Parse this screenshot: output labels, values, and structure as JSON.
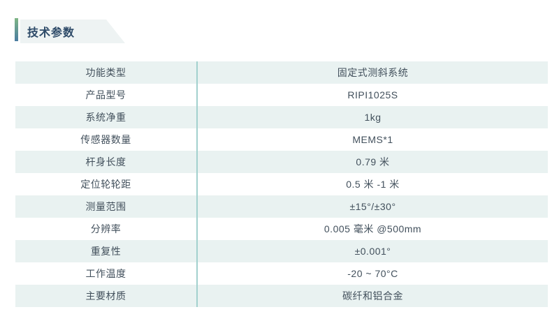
{
  "page": {
    "background": "#ffffff"
  },
  "header": {
    "title": "技术参数",
    "title_color": "#2d4a68",
    "badge_bg": "#eef3f3",
    "accent_bar_top_color": "#7fb685",
    "accent_bar_bottom_color": "#4a7ca1"
  },
  "table": {
    "stripe_bg": "#e9f2f1",
    "divider_color": "#a2d1ce",
    "text_color": "#42505c",
    "rows": [
      {
        "label": "功能类型",
        "value": "固定式测斜系统"
      },
      {
        "label": "产品型号",
        "value": "RIPI1025S"
      },
      {
        "label": "系统净重",
        "value": "1kg"
      },
      {
        "label": "传感器数量",
        "value": "MEMS*1"
      },
      {
        "label": "杆身长度",
        "value": "0.79 米"
      },
      {
        "label": "定位轮轮距",
        "value": "0.5 米 -1 米"
      },
      {
        "label": "测量范围",
        "value": "±15°/±30°"
      },
      {
        "label": "分辨率",
        "value": "0.005 毫米 @500mm"
      },
      {
        "label": "重复性",
        "value": "±0.001°"
      },
      {
        "label": "工作温度",
        "value": "-20 ~ 70°C"
      },
      {
        "label": "主要材质",
        "value": "碳纤和铝合金"
      }
    ]
  }
}
